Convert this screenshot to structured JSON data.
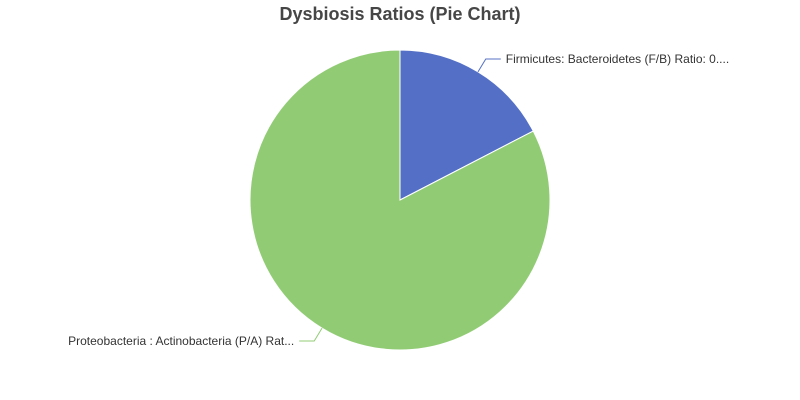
{
  "chart_data": {
    "type": "pie",
    "title": "Dysbiosis Ratios (Pie Chart)",
    "slices": [
      {
        "label": "Firmicutes: Bacteroidetes (F/B) Ratio: 0....",
        "value": 17.4,
        "color": "#5470c6"
      },
      {
        "label": "Proteobacteria : Actinobacteria (P/A) Rat...",
        "value": 82.6,
        "color": "#91cc75"
      }
    ],
    "legend": "none",
    "labels": "outside with leader lines"
  }
}
